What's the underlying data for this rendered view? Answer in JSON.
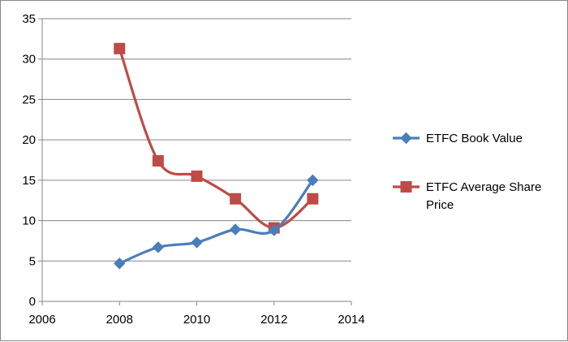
{
  "chart_data": {
    "type": "line",
    "title": "",
    "xlabel": "",
    "ylabel": "",
    "xlim": [
      2006,
      2014
    ],
    "ylim": [
      0,
      35
    ],
    "x_ticks": [
      2006,
      2008,
      2010,
      2012,
      2014
    ],
    "y_ticks": [
      0,
      5,
      10,
      15,
      20,
      25,
      30,
      35
    ],
    "x_tick_labels": [
      "2006",
      "2008",
      "2010",
      "2012",
      "2014"
    ],
    "y_tick_labels": [
      "0",
      "5",
      "10",
      "15",
      "20",
      "25",
      "30",
      "35"
    ],
    "grid": "horizontal",
    "legend_position": "right",
    "smooth": true,
    "series": [
      {
        "name": "ETFC Book Value",
        "color": "#4A7EBB",
        "marker": "diamond",
        "x": [
          2008,
          2009,
          2010,
          2011,
          2012,
          2013
        ],
        "y": [
          4.7,
          6.7,
          7.3,
          8.9,
          8.8,
          15.0
        ]
      },
      {
        "name": "ETFC Average Share Price",
        "legend_lines": [
          "ETFC Average Share",
          "Price"
        ],
        "color": "#BE4B48",
        "marker": "square",
        "x": [
          2008,
          2009,
          2010,
          2011,
          2012,
          2013
        ],
        "y": [
          31.3,
          17.4,
          15.5,
          12.7,
          9.1,
          12.7
        ]
      }
    ]
  }
}
